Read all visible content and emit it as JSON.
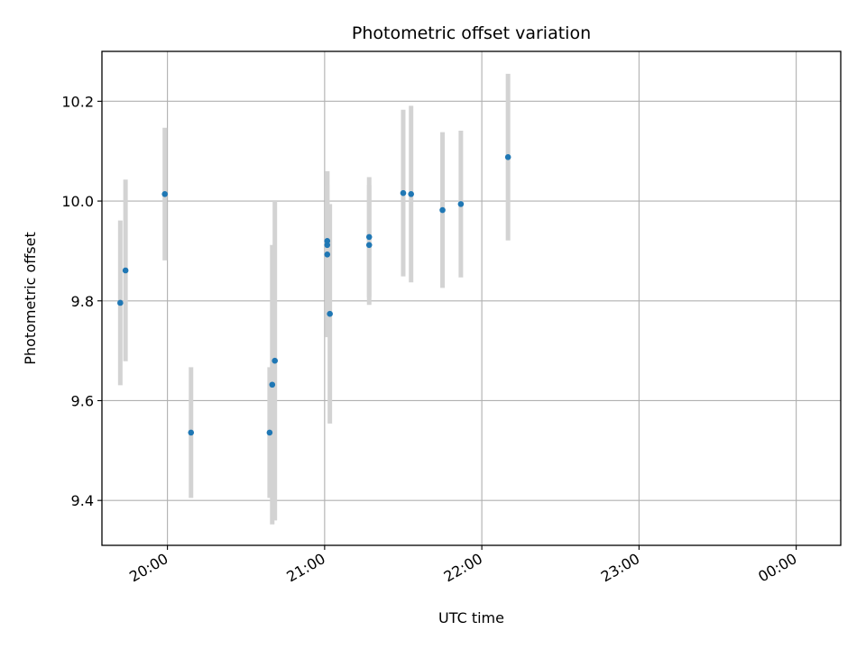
{
  "chart_data": {
    "type": "scatter",
    "title": "Photometric offset variation",
    "xlabel": "UTC time",
    "ylabel": "Photometric offset",
    "x_ticks": [
      {
        "t": "20:00",
        "label": "20:00"
      },
      {
        "t": "21:00",
        "label": "21:00"
      },
      {
        "t": "22:00",
        "label": "22:00"
      },
      {
        "t": "23:00",
        "label": "23:00"
      },
      {
        "t": "00:00",
        "label": "00:00"
      }
    ],
    "xlim": [
      "19:35",
      "00:17"
    ],
    "y_ticks": [
      9.4,
      9.6,
      9.8,
      10.0,
      10.2
    ],
    "ylim": [
      9.31,
      10.3
    ],
    "grid": true,
    "points": [
      {
        "x": "19:42",
        "y": 9.796,
        "err": 0.165
      },
      {
        "x": "19:44",
        "y": 9.861,
        "err": 0.182
      },
      {
        "x": "19:59",
        "y": 10.014,
        "err": 0.133
      },
      {
        "x": "20:09",
        "y": 9.536,
        "err": 0.131
      },
      {
        "x": "20:39",
        "y": 9.536,
        "err": 0.131
      },
      {
        "x": "20:40",
        "y": 9.632,
        "err": 0.28
      },
      {
        "x": "20:41",
        "y": 9.68,
        "err": 0.32
      },
      {
        "x": "21:01",
        "y": 9.912,
        "err": 0.12
      },
      {
        "x": "21:01",
        "y": 9.92,
        "err": 0.14
      },
      {
        "x": "21:01",
        "y": 9.893,
        "err": 0.166
      },
      {
        "x": "21:02",
        "y": 9.774,
        "err": 0.22
      },
      {
        "x": "21:17",
        "y": 9.912,
        "err": 0.12
      },
      {
        "x": "21:17",
        "y": 9.928,
        "err": 0.12
      },
      {
        "x": "21:30",
        "y": 10.016,
        "err": 0.167
      },
      {
        "x": "21:33",
        "y": 10.014,
        "err": 0.177
      },
      {
        "x": "21:45",
        "y": 9.982,
        "err": 0.156
      },
      {
        "x": "21:52",
        "y": 9.994,
        "err": 0.147
      },
      {
        "x": "22:10",
        "y": 10.088,
        "err": 0.167
      }
    ],
    "colors": {
      "marker": "#1f77b4",
      "errorbar": "#d3d3d3",
      "grid": "#b0b0b0",
      "axes": "#000000"
    }
  }
}
